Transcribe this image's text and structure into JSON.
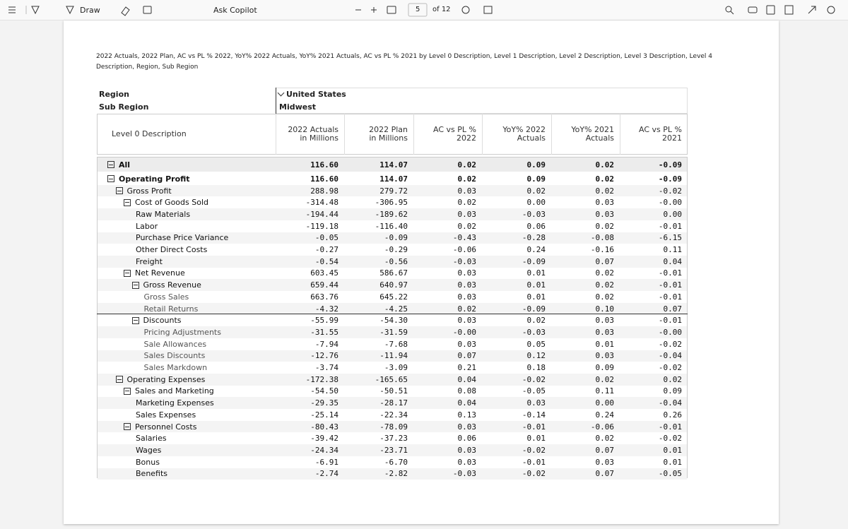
{
  "toolbar": {
    "draw": "Draw",
    "copilot": "Ask Copilot",
    "page": "5",
    "of": "of 12"
  },
  "caption": "2022 Actuals, 2022 Plan, AC vs PL % 2022, YoY% 2022 Actuals, YoY% 2021 Actuals, AC vs PL % 2021 by Level 0 Description, Level 1 Description, Level 2 Description, Level 3 Description, Level 4 Description, Region, Sub Region",
  "table": {
    "region_label": "Region",
    "region_value": "United States",
    "subregion_label": "Sub Region",
    "subregion_value": "Midwest",
    "headers": [
      "Level 0 Description",
      "2022 Actuals\nin Millions",
      "2022 Plan\nin Millions",
      "AC vs PL % 2022",
      "YoY% 2022\nActuals",
      "YoY% 2021\nActuals",
      "AC vs PL % 2021"
    ],
    "rows": [
      {
        "label": "All",
        "level": 0,
        "toggle": true,
        "values": [
          "116.60",
          "114.07",
          "0.02",
          "0.09",
          "0.02",
          "-0.09"
        ]
      },
      {
        "label": "Operating Profit",
        "level": 0,
        "toggle": true,
        "values": [
          "116.60",
          "114.07",
          "0.02",
          "0.09",
          "0.02",
          "-0.09"
        ]
      },
      {
        "label": "Gross Profit",
        "level": 1,
        "toggle": true,
        "values": [
          "288.98",
          "279.72",
          "0.03",
          "0.02",
          "0.02",
          "-0.02"
        ]
      },
      {
        "label": "Cost of Goods Sold",
        "level": 2,
        "toggle": true,
        "values": [
          "-314.48",
          "-306.95",
          "0.02",
          "0.00",
          "0.03",
          "-0.00"
        ]
      },
      {
        "label": "Raw Materials",
        "level": 3,
        "toggle": false,
        "values": [
          "-194.44",
          "-189.62",
          "0.03",
          "-0.03",
          "0.03",
          "0.00"
        ]
      },
      {
        "label": "Labor",
        "level": 3,
        "toggle": false,
        "values": [
          "-119.18",
          "-116.40",
          "0.02",
          "0.06",
          "0.02",
          "-0.01"
        ]
      },
      {
        "label": "Purchase Price Variance",
        "level": 3,
        "toggle": false,
        "values": [
          "-0.05",
          "-0.09",
          "-0.43",
          "-0.28",
          "-0.08",
          "-6.15"
        ]
      },
      {
        "label": "Other Direct Costs",
        "level": 3,
        "toggle": false,
        "values": [
          "-0.27",
          "-0.29",
          "-0.06",
          "0.24",
          "-0.16",
          "0.11"
        ]
      },
      {
        "label": "Freight",
        "level": 3,
        "toggle": false,
        "values": [
          "-0.54",
          "-0.56",
          "-0.03",
          "-0.09",
          "0.07",
          "0.04"
        ]
      },
      {
        "label": "Net Revenue",
        "level": 2,
        "toggle": true,
        "values": [
          "603.45",
          "586.67",
          "0.03",
          "0.01",
          "0.02",
          "-0.01"
        ]
      },
      {
        "label": "Gross Revenue",
        "level": 3,
        "toggle": true,
        "values": [
          "659.44",
          "640.97",
          "0.03",
          "0.01",
          "0.02",
          "-0.01"
        ]
      },
      {
        "label": "Gross Sales",
        "level": 4,
        "toggle": false,
        "values": [
          "663.76",
          "645.22",
          "0.03",
          "0.01",
          "0.02",
          "-0.01"
        ]
      },
      {
        "label": "Retail Returns",
        "level": 4,
        "toggle": false,
        "values": [
          "-4.32",
          "-4.25",
          "0.02",
          "-0.09",
          "0.10",
          "0.07"
        ]
      },
      {
        "label": "Discounts",
        "level": 3,
        "toggle": true,
        "values": [
          "-55.99",
          "-54.30",
          "0.03",
          "0.02",
          "0.03",
          "-0.01"
        ]
      },
      {
        "label": "Pricing Adjustments",
        "level": 4,
        "toggle": false,
        "values": [
          "-31.55",
          "-31.59",
          "-0.00",
          "-0.03",
          "0.03",
          "-0.00"
        ]
      },
      {
        "label": "Sale Allowances",
        "level": 4,
        "toggle": false,
        "values": [
          "-7.94",
          "-7.68",
          "0.03",
          "0.05",
          "0.01",
          "-0.02"
        ]
      },
      {
        "label": "Sales Discounts",
        "level": 4,
        "toggle": false,
        "values": [
          "-12.76",
          "-11.94",
          "0.07",
          "0.12",
          "0.03",
          "-0.04"
        ]
      },
      {
        "label": "Sales Markdown",
        "level": 4,
        "toggle": false,
        "values": [
          "-3.74",
          "-3.09",
          "0.21",
          "0.18",
          "0.09",
          "-0.02"
        ]
      },
      {
        "label": "Operating Expenses",
        "level": 1,
        "toggle": true,
        "values": [
          "-172.38",
          "-165.65",
          "0.04",
          "-0.02",
          "0.02",
          "0.02"
        ]
      },
      {
        "label": "Sales and Marketing",
        "level": 2,
        "toggle": true,
        "values": [
          "-54.50",
          "-50.51",
          "0.08",
          "-0.05",
          "0.11",
          "0.09"
        ]
      },
      {
        "label": "Marketing Expenses",
        "level": 3,
        "toggle": false,
        "values": [
          "-29.35",
          "-28.17",
          "0.04",
          "0.03",
          "0.00",
          "-0.04"
        ]
      },
      {
        "label": "Sales Expenses",
        "level": 3,
        "toggle": false,
        "values": [
          "-25.14",
          "-22.34",
          "0.13",
          "-0.14",
          "0.24",
          "0.26"
        ]
      },
      {
        "label": "Personnel Costs",
        "level": 2,
        "toggle": true,
        "values": [
          "-80.43",
          "-78.09",
          "0.03",
          "-0.01",
          "-0.06",
          "-0.01"
        ]
      },
      {
        "label": "Salaries",
        "level": 3,
        "toggle": false,
        "values": [
          "-39.42",
          "-37.23",
          "0.06",
          "0.01",
          "0.02",
          "-0.02"
        ]
      },
      {
        "label": "Wages",
        "level": 3,
        "toggle": false,
        "values": [
          "-24.34",
          "-23.71",
          "0.03",
          "-0.02",
          "0.07",
          "0.01"
        ]
      },
      {
        "label": "Bonus",
        "level": 3,
        "toggle": false,
        "values": [
          "-6.91",
          "-6.70",
          "0.03",
          "-0.01",
          "0.03",
          "0.01"
        ]
      },
      {
        "label": "Benefits",
        "level": 3,
        "toggle": false,
        "values": [
          "-2.74",
          "-2.82",
          "-0.03",
          "-0.02",
          "0.07",
          "-0.05"
        ]
      }
    ]
  }
}
